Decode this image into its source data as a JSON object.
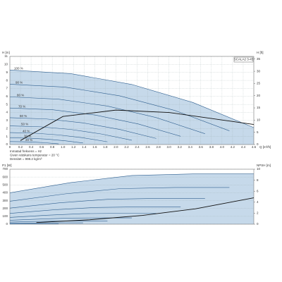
{
  "chart_data": [
    {
      "type": "line",
      "model": "SCALA2 3-45",
      "ylabel": "H [m]",
      "y2label": "H [ft]",
      "xlabel": "Q [m³/h]",
      "area_color": "#c6d9ea",
      "notes": [
        "Inmatad frekvens = Hz",
        "Given vätskans temperatur = 20 °C",
        "Densitet = 998.2 kg/m³"
      ],
      "xlim": [
        0,
        4.6
      ],
      "xticks": [
        0,
        0.2,
        0.4,
        0.6,
        0.8,
        {
          "value": 1,
          "label": "1.0"
        },
        1.2,
        1.4,
        1.6,
        1.8,
        {
          "value": 2,
          "label": "2.0"
        },
        2.2,
        2.4,
        2.6,
        2.8,
        {
          "value": 3,
          "label": "3.0"
        },
        3.2,
        3.4,
        3.6,
        3.8,
        {
          "value": 4,
          "label": "4.0"
        },
        4.2,
        4.4,
        4.6
      ],
      "ylim": [
        0,
        11
      ],
      "yticks": [
        0,
        1,
        2,
        3,
        4,
        5,
        6,
        7,
        8,
        9,
        10,
        11
      ],
      "y2lim": [
        0,
        36.09
      ],
      "y2ticks": [
        0,
        5,
        10,
        15,
        20,
        25,
        30,
        35
      ],
      "grid": true,
      "series": [
        {
          "label": "100 %",
          "color": "#2f5f8f",
          "x": [
            0,
            1.15,
            2.3,
            3.45,
            4.6
          ],
          "values": [
            9.3,
            8.85,
            7.5,
            5.25,
            2.11
          ]
        },
        {
          "label": "90 %",
          "color": "#2f5f8f",
          "x": [
            0,
            1.04,
            2.07,
            3.11,
            4.14
          ],
          "values": [
            7.53,
            7.17,
            6.08,
            4.25,
            1.71
          ]
        },
        {
          "label": "80 %",
          "color": "#2f5f8f",
          "x": [
            0,
            0.92,
            1.84,
            2.76,
            3.68
          ],
          "values": [
            5.95,
            5.66,
            4.8,
            3.36,
            1.35
          ]
        },
        {
          "label": "70 %",
          "color": "#2f5f8f",
          "x": [
            0,
            0.81,
            1.61,
            2.42,
            3.22
          ],
          "values": [
            4.56,
            4.34,
            3.68,
            2.57,
            1.03
          ]
        },
        {
          "label": "60 %",
          "color": "#2f5f8f",
          "x": [
            0,
            0.69,
            1.38,
            2.07,
            2.76
          ],
          "values": [
            3.35,
            3.19,
            2.7,
            1.89,
            0.76
          ]
        },
        {
          "label": "50 %",
          "color": "#2f5f8f",
          "x": [
            0,
            0.58,
            1.15,
            1.73,
            2.3
          ],
          "values": [
            2.33,
            2.21,
            1.88,
            1.31,
            0.53
          ]
        },
        {
          "label": "40 %",
          "color": "#2f5f8f",
          "x": [
            0,
            0.46,
            0.92,
            1.38,
            1.84
          ],
          "values": [
            1.49,
            1.42,
            1.2,
            0.84,
            0.34
          ]
        },
        {
          "label": "30 %",
          "color": "#2f5f8f",
          "x": [
            0,
            0.35,
            0.69,
            1.04,
            1.38
          ],
          "values": [
            0.84,
            0.8,
            0.68,
            0.47,
            0.19
          ]
        },
        {
          "label": "20 %",
          "color": "#2f5f8f",
          "x": [
            0,
            0.23,
            0.46,
            0.69,
            0.92
          ],
          "values": [
            0.37,
            0.35,
            0.3,
            0.21,
            0.08
          ]
        },
        {
          "color": "#111111",
          "x": [
            0.2,
            1,
            2,
            3,
            4.6
          ],
          "values": [
            0.5,
            3.5,
            4.3,
            4.0,
            2.5
          ]
        }
      ]
    },
    {
      "type": "line",
      "ylabel": "P1 [W]",
      "y2label": "NPSH [m]",
      "area_color": "#c6d9ea",
      "xlim": [
        0,
        4.6
      ],
      "ylim": [
        0,
        700
      ],
      "yticks": [
        0,
        100,
        200,
        300,
        400,
        500,
        600,
        700
      ],
      "y2lim": [
        0,
        10
      ],
      "y2ticks": [
        0,
        2,
        4,
        6,
        8,
        10
      ],
      "grid": true,
      "series": [
        {
          "color": "#2f5f8f",
          "x": [
            0,
            1.15,
            2.3,
            3.45,
            4.6
          ],
          "values": [
            400,
            530,
            620,
            640,
            640
          ]
        },
        {
          "color": "#2f5f8f",
          "x": [
            0,
            1.04,
            2.07,
            3.11,
            4.14
          ],
          "values": [
            292,
            386,
            452,
            467,
            467
          ]
        },
        {
          "color": "#2f5f8f",
          "x": [
            0,
            0.92,
            1.84,
            2.76,
            3.68
          ],
          "values": [
            205,
            271,
            317,
            328,
            328
          ]
        },
        {
          "color": "#2f5f8f",
          "x": [
            0,
            0.81,
            1.61,
            2.42,
            3.22
          ],
          "values": [
            137,
            182,
            213,
            220,
            220
          ]
        },
        {
          "color": "#2f5f8f",
          "x": [
            0,
            0.69,
            1.38,
            2.07,
            2.76
          ],
          "values": [
            86,
            114,
            134,
            138,
            138
          ]
        },
        {
          "color": "#2f5f8f",
          "x": [
            0,
            0.58,
            1.15,
            1.73,
            2.3
          ],
          "values": [
            50,
            66,
            78,
            80,
            80
          ]
        },
        {
          "color": "#2f5f8f",
          "x": [
            0,
            0.46,
            0.92,
            1.38,
            1.84
          ],
          "values": [
            26,
            34,
            40,
            41,
            41
          ]
        },
        {
          "color": "#2f5f8f",
          "x": [
            0,
            0.35,
            0.69,
            1.04,
            1.38
          ],
          "values": [
            11,
            14,
            17,
            17,
            17
          ]
        },
        {
          "color": "#2f5f8f",
          "x": [
            0,
            0.23,
            0.46,
            0.69,
            0.92
          ],
          "values": [
            3,
            4,
            5,
            5,
            5
          ]
        },
        {
          "color": "#111111",
          "axis": "y2",
          "x": [
            0.5,
            1.5,
            2.5,
            3.5,
            4.6
          ],
          "values": [
            0.3,
            0.8,
            1.6,
            2.8,
            4.8
          ]
        }
      ]
    }
  ]
}
